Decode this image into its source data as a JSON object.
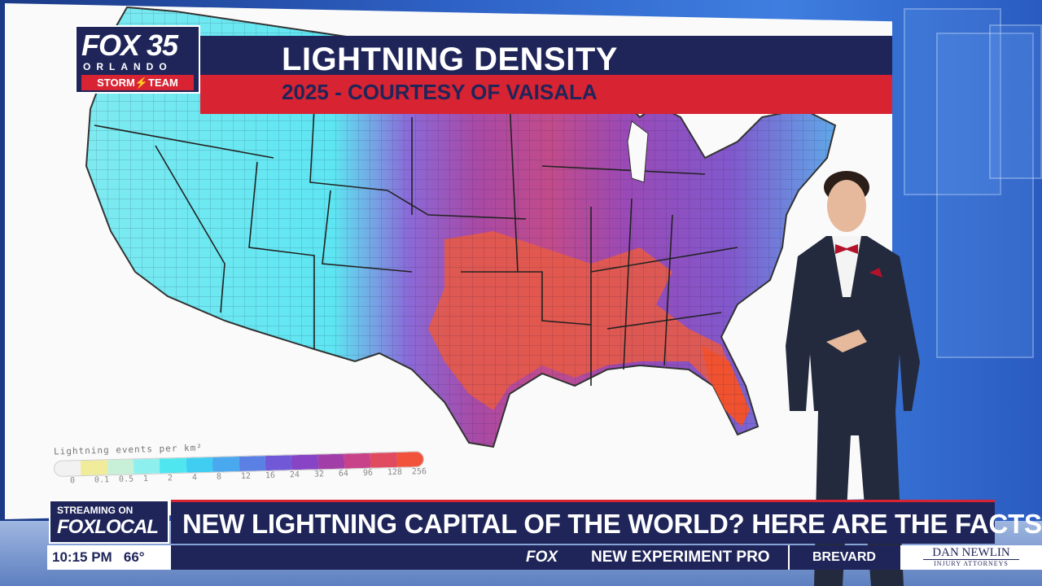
{
  "header": {
    "title": "LIGHTNING DENSITY",
    "subtitle": "2025 - COURTESY OF VAISALA"
  },
  "logo": {
    "main": "FOX 35",
    "city": "ORLANDO",
    "team": "STORM⚡TEAM"
  },
  "legend": {
    "title": "Lightning events per km²",
    "ticks": [
      "0",
      "0.1",
      "0.5",
      "1",
      "2",
      "4",
      "8",
      "12",
      "16",
      "24",
      "32",
      "64",
      "96",
      "128",
      "256"
    ],
    "colors": [
      "#f2f2f2",
      "#f0ec9c",
      "#c8f0d8",
      "#8ef0ee",
      "#4fe6f0",
      "#3fcdf2",
      "#4aa8ee",
      "#5a80e4",
      "#7058d6",
      "#8744c4",
      "#a23ea8",
      "#c8428a",
      "#e04b60",
      "#f2523a"
    ]
  },
  "lower_third": {
    "stream_top": "STREAMING ON",
    "stream_brand": "FOXLOCAL",
    "headline": "NEW LIGHTNING CAPITAL OF THE WORLD? HERE ARE THE FACTS"
  },
  "ticker": {
    "time": "10:15 PM",
    "temp": "66°",
    "network": "FOX",
    "text": "NEW  EXPERIMENT  PRO",
    "county": "BREVARD",
    "sponsor_name": "DAN NEWLIN",
    "sponsor_sub": "INJURY ATTORNEYS"
  }
}
